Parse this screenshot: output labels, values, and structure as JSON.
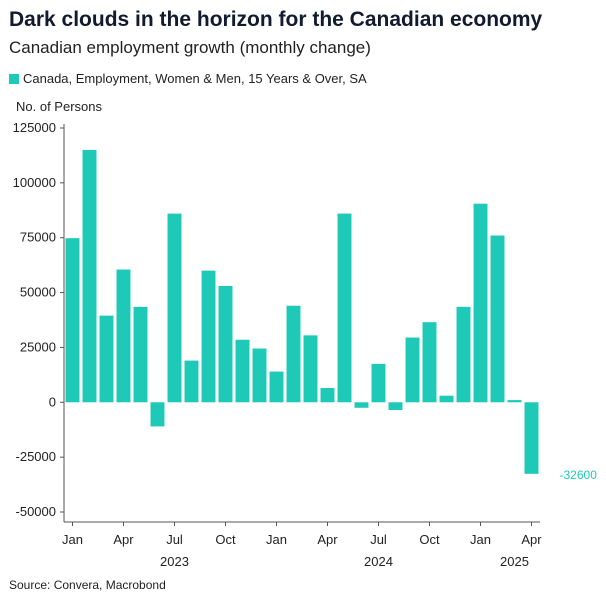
{
  "title": "Dark clouds in the horizon for the Canadian economy",
  "subtitle": "Canadian employment growth (monthly change)",
  "legend": {
    "label": "Canada, Employment, Women & Men, 15 Years & Over, SA",
    "color": "#1ec9b7"
  },
  "source": "Source: Convera, Macrobond",
  "chart_data": {
    "type": "bar",
    "title": "Dark clouds in the horizon for the Canadian economy",
    "ylabel": "No. of Persons",
    "xlabel": "",
    "ylim": [
      -50000,
      125000
    ],
    "yticks": [
      125000,
      100000,
      75000,
      50000,
      25000,
      0,
      -25000,
      -50000
    ],
    "ytick_labels": [
      "125000",
      "100000",
      "75000",
      "50000",
      "25000",
      "0",
      "-25000",
      "-50000"
    ],
    "categories": [
      "2023-01",
      "2023-02",
      "2023-03",
      "2023-04",
      "2023-05",
      "2023-06",
      "2023-07",
      "2023-08",
      "2023-09",
      "2023-10",
      "2023-11",
      "2023-12",
      "2024-01",
      "2024-02",
      "2024-03",
      "2024-04",
      "2024-05",
      "2024-06",
      "2024-07",
      "2024-08",
      "2024-09",
      "2024-10",
      "2024-11",
      "2024-12",
      "2025-01",
      "2025-02",
      "2025-03",
      "2025-04"
    ],
    "values": [
      74800,
      115000,
      39500,
      60500,
      43500,
      -11000,
      86000,
      19000,
      60000,
      53000,
      28500,
      24500,
      14000,
      44000,
      30500,
      6500,
      86000,
      -2500,
      17500,
      -3500,
      29500,
      36500,
      3000,
      43500,
      90500,
      76000,
      1000,
      -32600
    ],
    "series_color": "#1ec9b7",
    "x_month_ticks": [
      {
        "index": 0,
        "label": "Jan"
      },
      {
        "index": 3,
        "label": "Apr"
      },
      {
        "index": 6,
        "label": "Jul"
      },
      {
        "index": 9,
        "label": "Oct"
      },
      {
        "index": 12,
        "label": "Jan"
      },
      {
        "index": 15,
        "label": "Apr"
      },
      {
        "index": 18,
        "label": "Jul"
      },
      {
        "index": 21,
        "label": "Oct"
      },
      {
        "index": 24,
        "label": "Jan"
      },
      {
        "index": 27,
        "label": "Apr"
      }
    ],
    "x_year_labels": [
      {
        "index": 6,
        "label": "2023"
      },
      {
        "index": 18,
        "label": "2024"
      },
      {
        "index": 26,
        "label": "2025"
      }
    ],
    "annotation": {
      "index": 27,
      "text": "-32600"
    }
  }
}
